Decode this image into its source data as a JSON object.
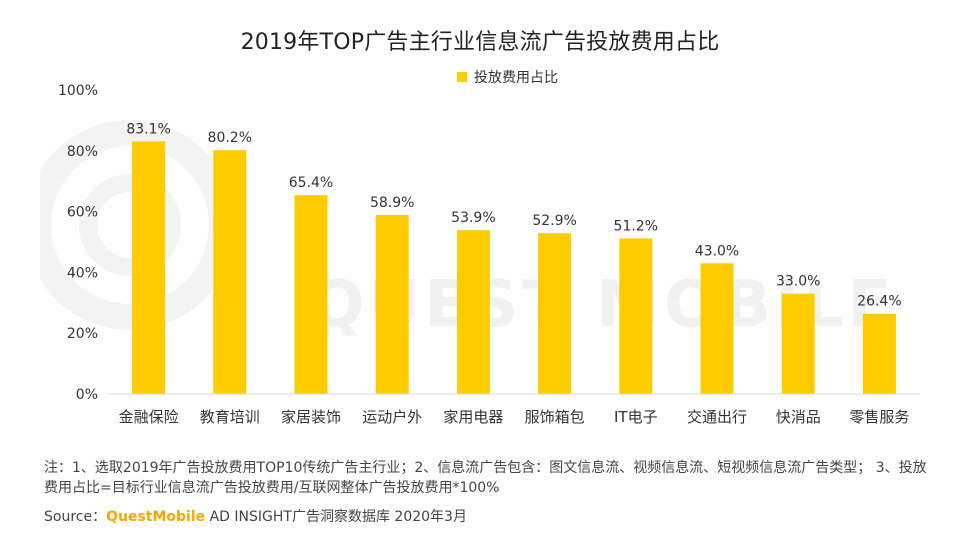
{
  "title": "2019年TOP广告主行业信息流广告投放费用占比",
  "watermark": "QUEST MOBILE",
  "colors": {
    "bar": "#FFCC00",
    "axis": "#d9d9d9",
    "text": "#333333",
    "brand": "#F5A800"
  },
  "chart_data": {
    "type": "bar",
    "categories": [
      "金融保险",
      "教育培训",
      "家居装饰",
      "运动户外",
      "家用电器",
      "服饰箱包",
      "IT电子",
      "交通出行",
      "快消品",
      "零售服务"
    ],
    "series": [
      {
        "name": "投放费用占比",
        "values": [
          83.1,
          80.2,
          65.4,
          58.9,
          53.9,
          52.9,
          51.2,
          43.0,
          33.0,
          26.4
        ],
        "labels": [
          "83.1%",
          "80.2%",
          "65.4%",
          "58.9%",
          "53.9%",
          "52.9%",
          "51.2%",
          "43.0%",
          "33.0%",
          "26.4%"
        ]
      }
    ],
    "ylim": [
      0,
      100
    ],
    "yticks": [
      "0%",
      "20%",
      "40%",
      "60%",
      "80%",
      "100%"
    ],
    "grid": false,
    "legend_position": "top-center"
  },
  "notes": [
    "注：1、选取2019年广告投放费用TOP10传统广告主行业；2、信息流广告包含：图文信息流、视频信息流、短视频信息流广告类型； 3、投放费用占比=目标行业信息流广告投放费用/互联网整体广告投放费用*100%"
  ],
  "source": {
    "prefix": "Source：",
    "brand": "QuestMobile",
    "rest": " AD INSIGHT广告洞察数据库 2020年3月"
  }
}
